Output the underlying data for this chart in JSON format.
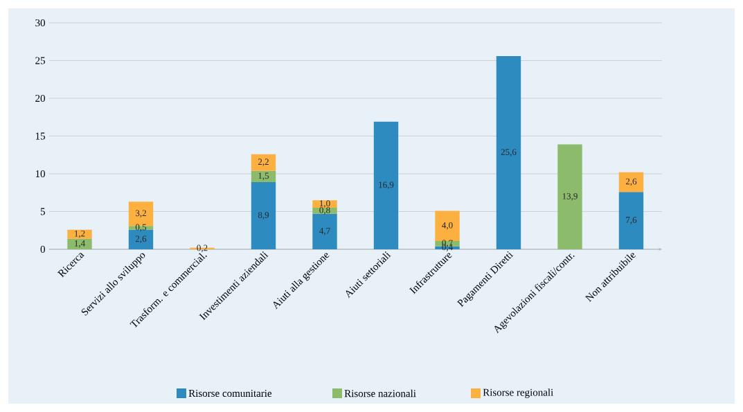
{
  "chart_data": {
    "type": "bar",
    "stacked": true,
    "categories": [
      "Ricerca",
      "Servizi allo sviluppo",
      "Trasform. e commercial.",
      "Investimenti aziendali",
      "Aiuti alla gestione",
      "Aiuti settoriali",
      "Infrastrutture",
      "Pagamenti Diretti",
      "Agevolazioni fiscali/contr.",
      "Non attribuibile"
    ],
    "series": [
      {
        "name": "Risorse comunitarie",
        "color": "#2e8bc0",
        "values": [
          null,
          2.6,
          null,
          8.9,
          4.7,
          16.9,
          0.4,
          25.6,
          null,
          7.6
        ],
        "value_labels": [
          null,
          "2,6",
          null,
          "8,9",
          "4,7",
          "16,9",
          "0,4",
          "25,6",
          null,
          "7,6"
        ]
      },
      {
        "name": "Risorse nazionali",
        "color": "#8cbb6c",
        "values": [
          1.4,
          0.5,
          null,
          1.5,
          0.8,
          null,
          0.7,
          null,
          13.9,
          null
        ],
        "value_labels": [
          "1,4",
          "0,5",
          null,
          "1,5",
          "0,8",
          null,
          "0,7",
          null,
          "13,9",
          null
        ]
      },
      {
        "name": "Risorse regionali",
        "color": "#fbb040",
        "values": [
          1.2,
          3.2,
          0.2,
          2.2,
          1.0,
          null,
          4.0,
          null,
          null,
          2.6
        ],
        "value_labels": [
          "1,2",
          "3,2",
          "0,2",
          "2,2",
          "1,0",
          null,
          "4,0",
          null,
          null,
          "2,6"
        ]
      }
    ],
    "ylim": [
      0,
      30
    ],
    "yticks": [
      0,
      5,
      10,
      15,
      20,
      25,
      30
    ],
    "grid": "y",
    "legend": "bottom"
  }
}
